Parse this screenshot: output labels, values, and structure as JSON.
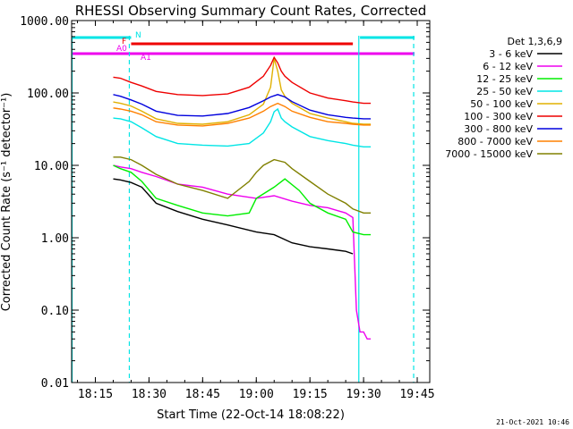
{
  "footer_timestamp": "21-Oct-2021 10:46",
  "colors": {
    "background": "#ffffff",
    "axes": "#000000",
    "cyan": "#00e5e5",
    "red": "#ee0000",
    "magenta": "#ee00ee"
  },
  "chart_data": {
    "type": "line",
    "title": "RHESSI Observing Summary Count Rates, Corrected",
    "xlabel": "Start Time (22-Oct-14 18:08:22)",
    "ylabel": "Corrected Count Rate (s⁻¹ detector⁻¹)",
    "y_scale": "log",
    "ylim": [
      0.01,
      1000
    ],
    "xlim": [
      "18:08:22",
      "19:48:30"
    ],
    "x_ticks": [
      "18:15",
      "18:30",
      "18:45",
      "19:00",
      "19:15",
      "19:30",
      "19:45"
    ],
    "y_ticks": [
      "1000.00",
      "100.00",
      "10.00",
      "1.00",
      "0.10",
      "0.01"
    ],
    "legend_title": "Det 1,3,6,9",
    "legend_position": "outside-right",
    "series": [
      {
        "name": "3 - 6 keV",
        "color": "#000000",
        "x": [
          "18:20",
          "18:22",
          "18:25",
          "18:28",
          "18:32",
          "18:38",
          "18:45",
          "18:52",
          "19:00",
          "19:05",
          "19:10",
          "19:15",
          "19:20",
          "19:25",
          "19:27"
        ],
        "values": [
          6.5,
          6.3,
          5.8,
          5.0,
          3.0,
          2.3,
          1.8,
          1.5,
          1.2,
          1.1,
          0.85,
          0.75,
          0.7,
          0.65,
          0.6
        ]
      },
      {
        "name": "6 - 12 keV",
        "color": "#ee00ee",
        "x": [
          "18:20",
          "18:22",
          "18:25",
          "18:28",
          "18:32",
          "18:38",
          "18:45",
          "18:52",
          "19:00",
          "19:05",
          "19:10",
          "19:15",
          "19:20",
          "19:25",
          "19:27",
          "19:28",
          "19:29",
          "19:30",
          "19:31",
          "19:32"
        ],
        "values": [
          10,
          9.5,
          9,
          8,
          7,
          5.5,
          5,
          4,
          3.5,
          3.8,
          3.2,
          2.8,
          2.6,
          2.2,
          1.9,
          0.1,
          0.05,
          0.05,
          0.04,
          0.04
        ]
      },
      {
        "name": "12 - 25 keV",
        "color": "#00ee00",
        "x": [
          "18:20",
          "18:22",
          "18:25",
          "18:28",
          "18:32",
          "18:38",
          "18:45",
          "18:52",
          "18:58",
          "19:00",
          "19:05",
          "19:08",
          "19:12",
          "19:15",
          "19:20",
          "19:25",
          "19:27",
          "19:30",
          "19:32"
        ],
        "values": [
          10,
          9,
          8,
          6,
          3.5,
          2.8,
          2.2,
          2.0,
          2.2,
          3.5,
          5.0,
          6.5,
          4.5,
          3.0,
          2.2,
          1.8,
          1.2,
          1.1,
          1.1
        ]
      },
      {
        "name": "25 - 50 keV",
        "color": "#00e5e5",
        "x": [
          "18:20",
          "18:22",
          "18:25",
          "18:28",
          "18:32",
          "18:38",
          "18:45",
          "18:52",
          "18:58",
          "19:02",
          "19:04",
          "19:05",
          "19:06",
          "19:07",
          "19:08",
          "19:10",
          "19:15",
          "19:20",
          "19:25",
          "19:27",
          "19:30",
          "19:32"
        ],
        "values": [
          45,
          44,
          40,
          33,
          25,
          20,
          19,
          18.5,
          20,
          28,
          40,
          55,
          60,
          45,
          40,
          34,
          25,
          22,
          20,
          19,
          18,
          18
        ]
      },
      {
        "name": "50 - 100 keV",
        "color": "#e0b000",
        "x": [
          "18:20",
          "18:22",
          "18:25",
          "18:28",
          "18:32",
          "18:38",
          "18:45",
          "18:52",
          "18:58",
          "19:02",
          "19:04",
          "19:05",
          "19:06",
          "19:07",
          "19:08",
          "19:10",
          "19:15",
          "19:20",
          "19:25",
          "19:27",
          "19:30",
          "19:32"
        ],
        "values": [
          75,
          72,
          66,
          56,
          44,
          38,
          37,
          40,
          50,
          70,
          120,
          300,
          200,
          110,
          90,
          72,
          52,
          45,
          40,
          38,
          37,
          37
        ]
      },
      {
        "name": "100 - 300 keV",
        "color": "#ee0000",
        "x": [
          "18:20",
          "18:22",
          "18:25",
          "18:28",
          "18:32",
          "18:38",
          "18:45",
          "18:52",
          "18:58",
          "19:02",
          "19:04",
          "19:05",
          "19:06",
          "19:07",
          "19:08",
          "19:10",
          "19:15",
          "19:20",
          "19:25",
          "19:27",
          "19:30",
          "19:32"
        ],
        "values": [
          165,
          160,
          140,
          125,
          105,
          95,
          92,
          97,
          120,
          170,
          240,
          310,
          260,
          200,
          170,
          140,
          100,
          85,
          78,
          75,
          72,
          72
        ]
      },
      {
        "name": "300 - 800 keV",
        "color": "#0000dd",
        "x": [
          "18:20",
          "18:22",
          "18:25",
          "18:28",
          "18:32",
          "18:38",
          "18:45",
          "18:52",
          "18:58",
          "19:02",
          "19:04",
          "19:06",
          "19:08",
          "19:10",
          "19:15",
          "19:20",
          "19:25",
          "19:27",
          "19:30",
          "19:32"
        ],
        "values": [
          95,
          90,
          80,
          70,
          56,
          49,
          48,
          52,
          63,
          78,
          88,
          95,
          88,
          76,
          58,
          50,
          46,
          45,
          44,
          44
        ]
      },
      {
        "name": "800 - 7000 keV",
        "color": "#ff8000",
        "x": [
          "18:20",
          "18:22",
          "18:25",
          "18:28",
          "18:32",
          "18:38",
          "18:45",
          "18:52",
          "18:58",
          "19:02",
          "19:04",
          "19:06",
          "19:08",
          "19:10",
          "19:15",
          "19:20",
          "19:25",
          "19:27",
          "19:30",
          "19:32"
        ],
        "values": [
          62,
          60,
          56,
          50,
          40,
          36,
          35,
          38,
          45,
          56,
          65,
          72,
          65,
          56,
          46,
          40,
          38,
          37,
          36,
          36
        ]
      },
      {
        "name": "7000 - 15000 keV",
        "color": "#808000",
        "x": [
          "18:20",
          "18:22",
          "18:25",
          "18:28",
          "18:32",
          "18:38",
          "18:45",
          "18:52",
          "18:58",
          "19:00",
          "19:02",
          "19:05",
          "19:08",
          "19:10",
          "19:15",
          "19:20",
          "19:25",
          "19:27",
          "19:30",
          "19:32"
        ],
        "values": [
          13,
          13,
          12,
          10,
          7.5,
          5.5,
          4.5,
          3.5,
          6,
          8,
          10,
          12,
          11,
          9,
          6,
          4,
          3,
          2.5,
          2.2,
          2.2
        ]
      }
    ],
    "flag_bars": [
      {
        "label": "N",
        "color": "#00e5e5",
        "level": "top",
        "segments": [
          [
            "18:08:22",
            "18:25"
          ],
          [
            "19:29",
            "19:46"
          ]
        ]
      },
      {
        "label": "F",
        "color": "#ee0000",
        "level": "middle",
        "segments": [
          [
            "18:25",
            "19:27"
          ]
        ]
      },
      {
        "label": "A0",
        "color": "#ee00ee",
        "level": "bottom",
        "segments": [
          [
            "18:08:22",
            "19:46"
          ]
        ]
      },
      {
        "label": "A1",
        "color": "#ee00ee",
        "level": "bottom",
        "segments": [
          [
            "18:27",
            "18:29"
          ]
        ]
      }
    ],
    "vertical_markers": [
      {
        "time": "18:08:30",
        "style": "solid",
        "color": "#00e5e5"
      },
      {
        "time": "18:24:30",
        "style": "dashed",
        "color": "#00e5e5"
      },
      {
        "time": "19:28:40",
        "style": "solid",
        "color": "#00e5e5"
      },
      {
        "time": "19:44",
        "style": "dashed",
        "color": "#00e5e5"
      }
    ]
  }
}
